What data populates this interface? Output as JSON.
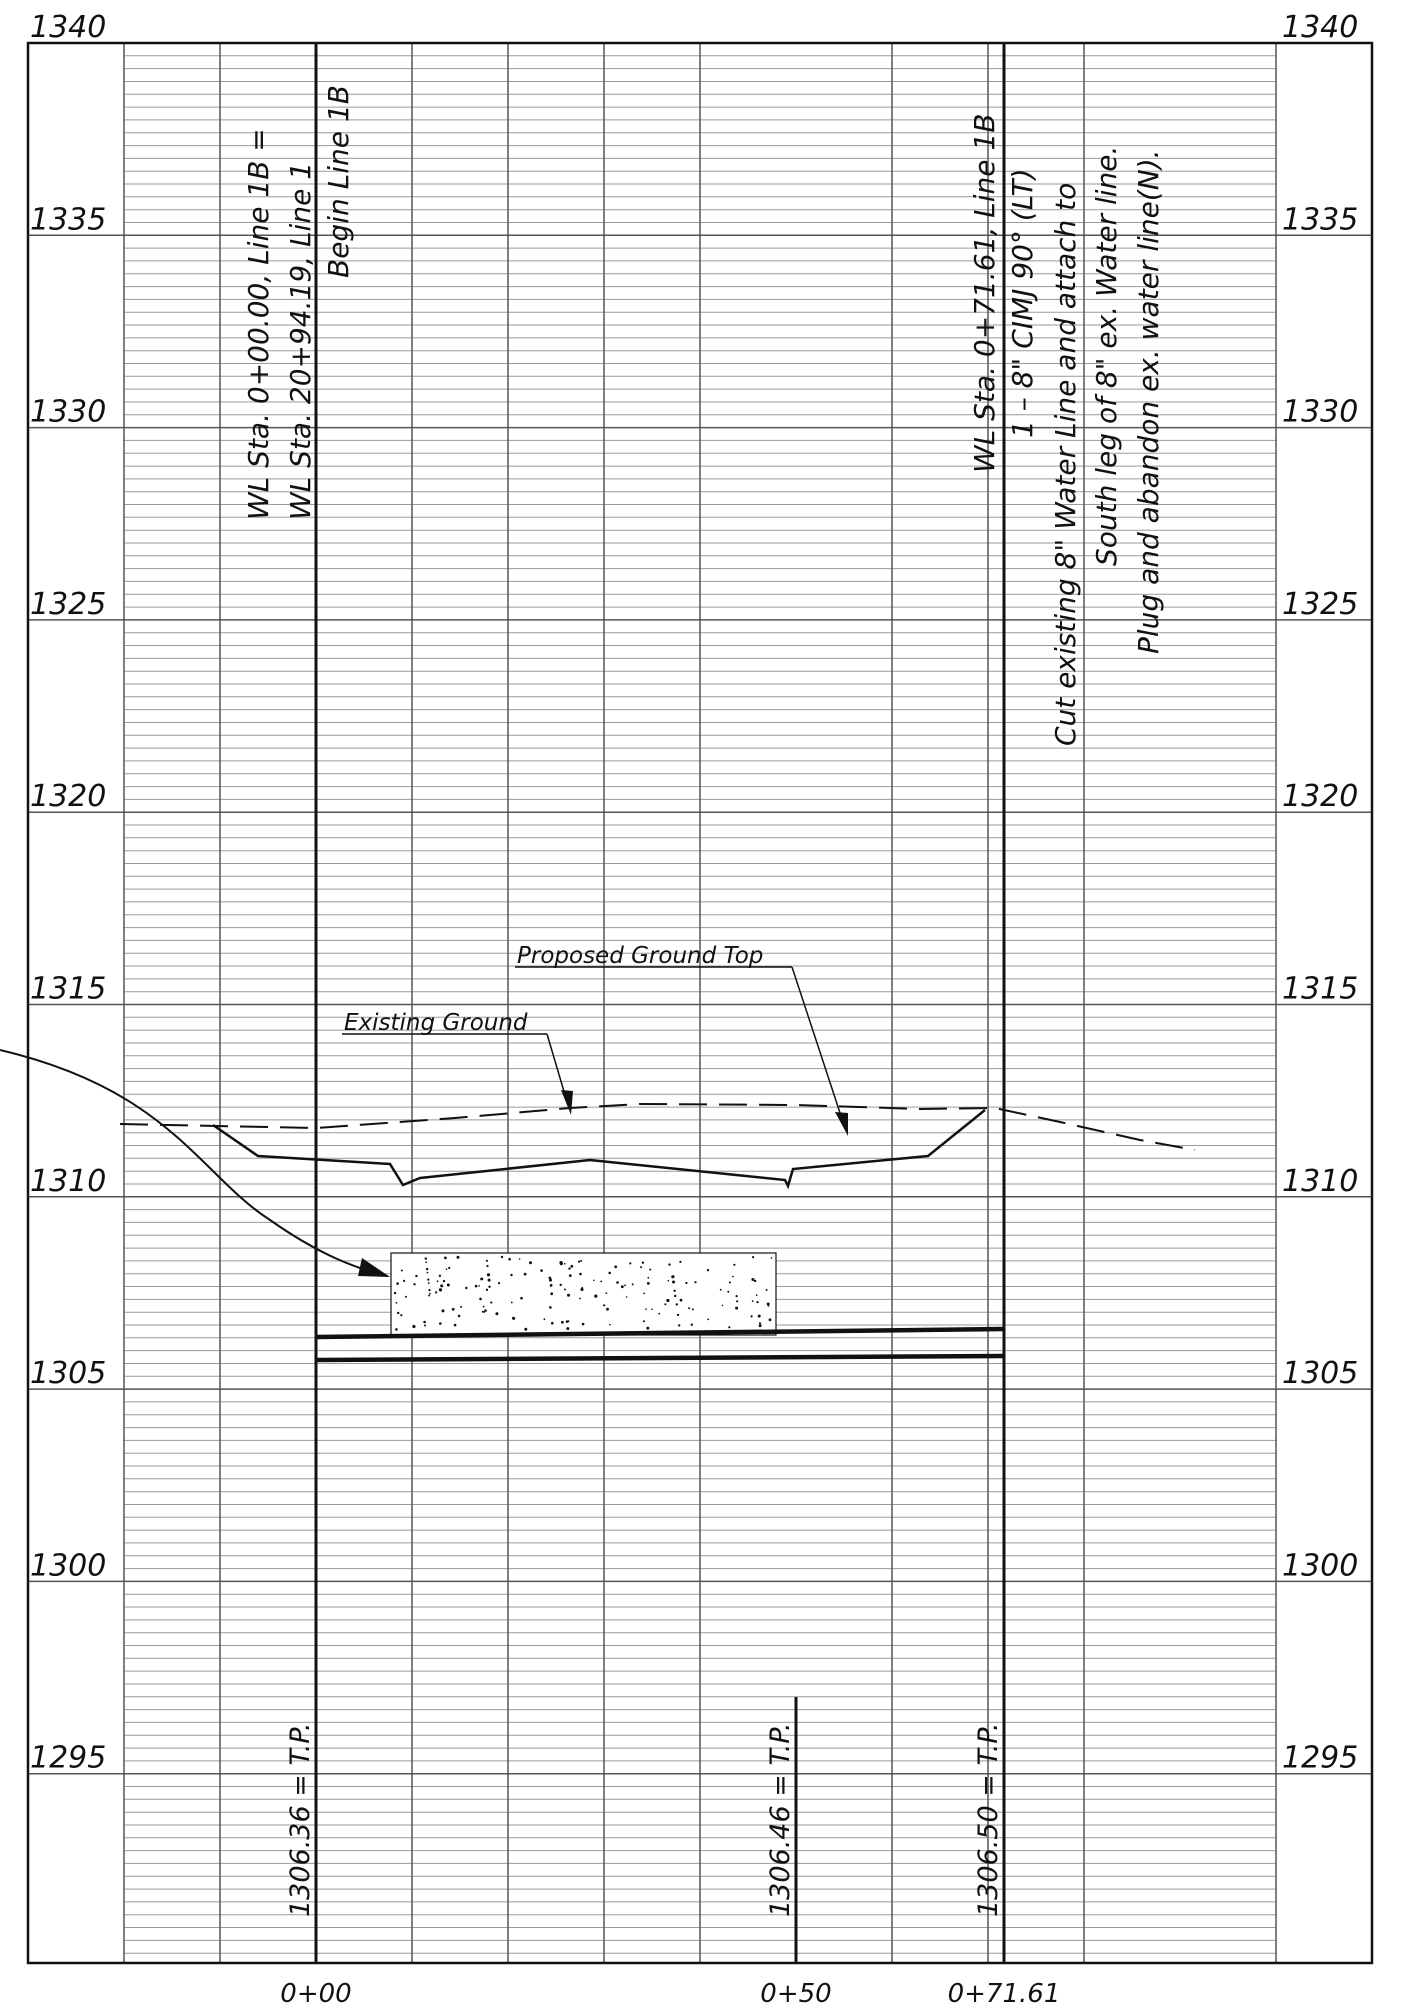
{
  "elevations": [
    "1340",
    "1335",
    "1330",
    "1325",
    "1320",
    "1315",
    "1310",
    "1305",
    "1300",
    "1295"
  ],
  "stations": [
    {
      "label": "0+00"
    },
    {
      "label": "0+50"
    },
    {
      "label": "0+71.61"
    }
  ],
  "notes": {
    "begin": [
      "WL Sta. 0+00.00, Line 1B =",
      "WL Sta. 20+94.19, Line 1",
      "Begin Line 1B"
    ],
    "end": [
      "WL Sta. 0+71.61, Line 1B",
      "1 – 8\" CIMJ 90° (LT)",
      "Cut existing 8\" Water Line and attach to",
      "South leg of 8\" ex. Water line.",
      "Plug and abandon ex. water line(N)."
    ]
  },
  "labels": {
    "proposed": "Proposed Ground Top",
    "existing": "Existing Ground"
  },
  "tp_labels": [
    "1306.36 = T.P.",
    "1306.46 = T.P.",
    "1306.50 = T.P."
  ],
  "colors": {
    "ink": "#111111",
    "grid_major": "#555555",
    "grid_minor": "#9a9a9a"
  }
}
